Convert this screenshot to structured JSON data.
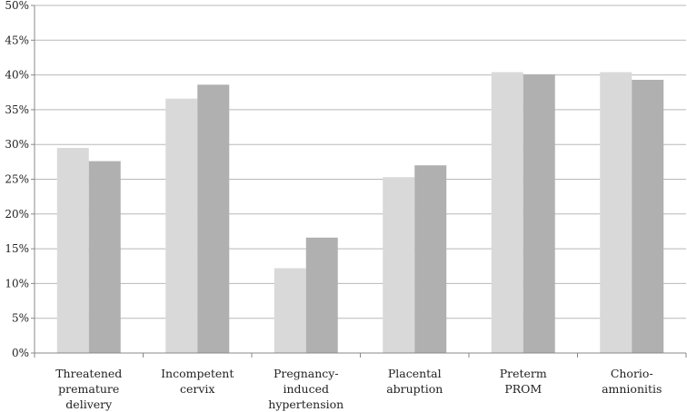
{
  "chart_data": {
    "type": "bar",
    "categories": [
      [
        "Threatened",
        "premature",
        "delivery"
      ],
      [
        "Incompetent",
        "cervix"
      ],
      [
        "Pregnancy-",
        "induced",
        "hypertension"
      ],
      [
        "Placental",
        "abruption"
      ],
      [
        "Preterm",
        "PROM"
      ],
      [
        "Chorio-",
        "amnionitis"
      ]
    ],
    "series": [
      {
        "color": "#d9d9d9",
        "values": [
          29.5,
          36.6,
          12.2,
          25.3,
          40.4,
          40.4
        ]
      },
      {
        "color": "#b0b0b0",
        "values": [
          27.6,
          38.6,
          16.6,
          27.0,
          40.1,
          39.3
        ]
      }
    ],
    "title": "",
    "xlabel": "",
    "ylabel": "",
    "ylim": [
      0,
      50
    ],
    "yticks": [
      "0%",
      "5%",
      "10%",
      "15%",
      "20%",
      "25%",
      "30%",
      "35%",
      "40%",
      "45%",
      "50%"
    ],
    "grid": true,
    "legend": "none",
    "colors": {
      "grid": "#b8b8b8",
      "axis": "#888888",
      "text": "#222222"
    }
  }
}
